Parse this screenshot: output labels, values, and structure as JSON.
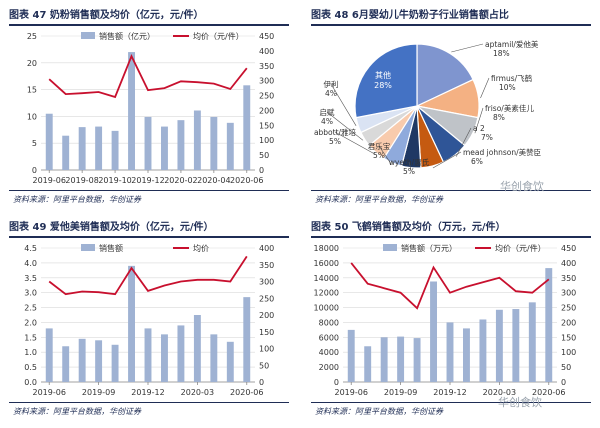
{
  "colors": {
    "bar": "#9fb2d3",
    "line": "#c8102e",
    "frame": "#1f2d55"
  },
  "panels": [
    {
      "title": "图表 47   奶粉销售额及均价（亿元，元/件）",
      "source": "资料来源：阿里平台数据，华创证券"
    },
    {
      "title": "图表 48   6月婴幼儿牛奶粉子行业销售额占比",
      "source": "资料来源：阿里平台数据，华创证券"
    },
    {
      "title": "图表 49   爱他美销售额及均价（亿元，元/件）",
      "source": "资料来源：阿里平台数据，华创证券"
    },
    {
      "title": "图表 50   飞鹤销售额及均价（万元，元/件）",
      "source": "资料来源：阿里平台数据，华创证券"
    }
  ],
  "watermarks": [
    "华创食饮",
    "华创食饮"
  ],
  "chart_data": [
    {
      "type": "bar",
      "legend": {
        "bar": "销售额（亿元）",
        "line": "均价（元/件）"
      },
      "x_tick_labels": [
        "2019-06",
        "2019-08",
        "2019-10",
        "2019-12",
        "2020-02",
        "2020-04",
        "2020-06"
      ],
      "y_left": {
        "lim": [
          0,
          25
        ],
        "ticks": [
          0,
          5,
          10,
          15,
          20,
          25
        ]
      },
      "y_right": {
        "lim": [
          0,
          450
        ],
        "ticks": [
          0,
          50,
          100,
          150,
          200,
          250,
          300,
          350,
          400,
          450
        ]
      },
      "bars": [
        10.5,
        6.4,
        8.0,
        8.1,
        7.3,
        22.0,
        9.9,
        8.1,
        9.3,
        11.1,
        9.9,
        8.8,
        15.8
      ],
      "line": [
        305,
        255,
        258,
        262,
        245,
        382,
        268,
        275,
        298,
        295,
        290,
        272,
        342
      ]
    },
    {
      "type": "pie",
      "slices": [
        {
          "label": "aptamil/爱他美",
          "pct": "18%",
          "value": 18,
          "color": "#7f95cf"
        },
        {
          "label": "firmus/飞鹤",
          "pct": "10%",
          "value": 10,
          "color": "#f4b183"
        },
        {
          "label": "friso/美素佳儿",
          "pct": "8%",
          "value": 8,
          "color": "#bfc3c8"
        },
        {
          "label": "a 2",
          "pct": "7%",
          "value": 7,
          "color": "#2f5597"
        },
        {
          "label": "mead johnson/美赞臣",
          "pct": "6%",
          "value": 6,
          "color": "#c55a11"
        },
        {
          "label": "wyeth/惠氏",
          "pct": "5%",
          "value": 5,
          "color": "#1f3864"
        },
        {
          "label": "君乐宝",
          "pct": "5%",
          "value": 5,
          "color": "#8faadc"
        },
        {
          "label": "abbott/雅培",
          "pct": "5%",
          "value": 5,
          "color": "#f8cbad"
        },
        {
          "label": "启赋",
          "pct": "4%",
          "value": 4,
          "color": "#d9d9d9"
        },
        {
          "label": "伊利",
          "pct": "4%",
          "value": 4,
          "color": "#dae3f3"
        },
        {
          "label": "其他",
          "pct": "28%",
          "value": 28,
          "color": "#4472c4"
        }
      ]
    },
    {
      "type": "bar",
      "legend": {
        "bar": "销售额",
        "line": "均价"
      },
      "x_tick_labels": [
        "2019-06",
        "2019-09",
        "2019-12",
        "2020-03",
        "2020-06"
      ],
      "y_left": {
        "lim": [
          0,
          4.5
        ],
        "ticks": [
          0.0,
          0.5,
          1.0,
          1.5,
          2.0,
          2.5,
          3.0,
          3.5,
          4.0,
          4.5
        ]
      },
      "y_right": {
        "lim": [
          0,
          400
        ],
        "ticks": [
          0,
          50,
          100,
          150,
          200,
          250,
          300,
          350,
          400
        ]
      },
      "bars": [
        1.8,
        1.2,
        1.45,
        1.4,
        1.25,
        3.9,
        1.8,
        1.6,
        1.9,
        2.25,
        1.6,
        1.35,
        2.85
      ],
      "line": [
        300,
        262,
        270,
        268,
        262,
        340,
        272,
        288,
        300,
        305,
        305,
        300,
        375
      ]
    },
    {
      "type": "bar",
      "legend": {
        "bar": "销售额（万元）",
        "line": "均价（元/件）"
      },
      "x_tick_labels": [
        "2019-06",
        "2019-09",
        "2019-12",
        "2020-03",
        "2020-06"
      ],
      "y_left": {
        "lim": [
          0,
          18000
        ],
        "ticks": [
          0,
          2000,
          4000,
          6000,
          8000,
          10000,
          12000,
          14000,
          16000,
          18000
        ]
      },
      "y_right": {
        "lim": [
          0,
          450
        ],
        "ticks": [
          0,
          50,
          100,
          150,
          200,
          250,
          300,
          350,
          400,
          450
        ]
      },
      "bars": [
        7000,
        4800,
        6000,
        6100,
        5900,
        13500,
        8000,
        7200,
        8400,
        9700,
        9800,
        10700,
        15300
      ],
      "line": [
        400,
        330,
        315,
        300,
        248,
        385,
        300,
        320,
        335,
        350,
        305,
        300,
        345
      ]
    }
  ]
}
